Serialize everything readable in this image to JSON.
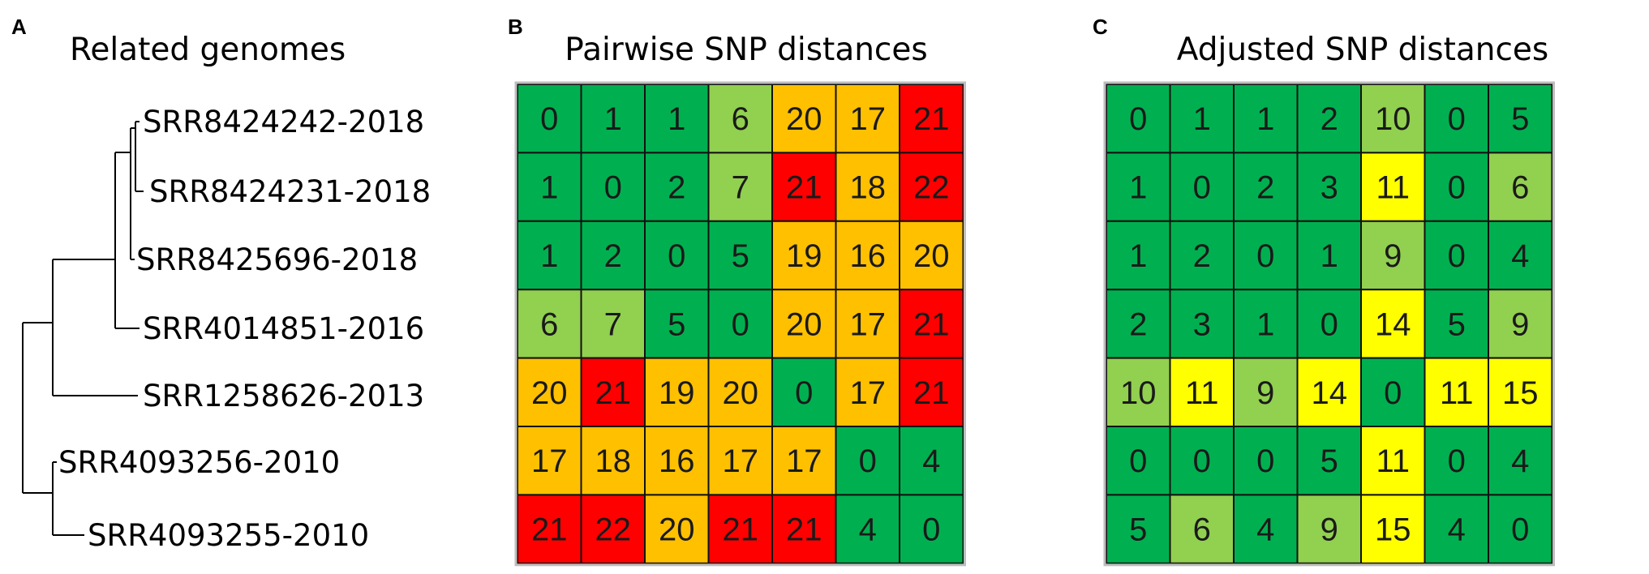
{
  "colors": {
    "dark_green": "#00b050",
    "light_green": "#92d050",
    "yellow": "#ffff00",
    "orange": "#ffc000",
    "red": "#ff0000"
  },
  "panel_a": {
    "letter": "A",
    "title": "Related genomes",
    "leaves": [
      "SRR8424242-2018",
      "SRR8424231-2018",
      "SRR8425696-2018",
      "SRR4014851-2016",
      "SRR1258626-2013",
      "SRR4093256-2010",
      "SRR4093255-2010"
    ]
  },
  "panel_b": {
    "letter": "B",
    "title": "Pairwise SNP distances",
    "matrix": [
      [
        0,
        1,
        1,
        6,
        20,
        17,
        21
      ],
      [
        1,
        0,
        2,
        7,
        21,
        18,
        22
      ],
      [
        1,
        2,
        0,
        5,
        19,
        16,
        20
      ],
      [
        6,
        7,
        5,
        0,
        20,
        17,
        21
      ],
      [
        20,
        21,
        19,
        20,
        0,
        17,
        21
      ],
      [
        17,
        18,
        16,
        17,
        17,
        0,
        4
      ],
      [
        21,
        22,
        20,
        21,
        21,
        4,
        0
      ]
    ],
    "cell_colors": [
      [
        "dark_green",
        "dark_green",
        "dark_green",
        "light_green",
        "orange",
        "orange",
        "red"
      ],
      [
        "dark_green",
        "dark_green",
        "dark_green",
        "light_green",
        "red",
        "orange",
        "red"
      ],
      [
        "dark_green",
        "dark_green",
        "dark_green",
        "dark_green",
        "orange",
        "orange",
        "orange"
      ],
      [
        "light_green",
        "light_green",
        "dark_green",
        "dark_green",
        "orange",
        "orange",
        "red"
      ],
      [
        "orange",
        "red",
        "orange",
        "orange",
        "dark_green",
        "orange",
        "red"
      ],
      [
        "orange",
        "orange",
        "orange",
        "orange",
        "orange",
        "dark_green",
        "dark_green"
      ],
      [
        "red",
        "red",
        "orange",
        "red",
        "red",
        "dark_green",
        "dark_green"
      ]
    ]
  },
  "panel_c": {
    "letter": "C",
    "title": "Adjusted SNP distances",
    "matrix": [
      [
        0,
        1,
        1,
        2,
        10,
        0,
        5
      ],
      [
        1,
        0,
        2,
        3,
        11,
        0,
        6
      ],
      [
        1,
        2,
        0,
        1,
        9,
        0,
        4
      ],
      [
        2,
        3,
        1,
        0,
        14,
        5,
        9
      ],
      [
        10,
        11,
        9,
        14,
        0,
        11,
        15
      ],
      [
        0,
        0,
        0,
        5,
        11,
        0,
        4
      ],
      [
        5,
        6,
        4,
        9,
        15,
        4,
        0
      ]
    ],
    "cell_colors": [
      [
        "dark_green",
        "dark_green",
        "dark_green",
        "dark_green",
        "light_green",
        "dark_green",
        "dark_green"
      ],
      [
        "dark_green",
        "dark_green",
        "dark_green",
        "dark_green",
        "yellow",
        "dark_green",
        "light_green"
      ],
      [
        "dark_green",
        "dark_green",
        "dark_green",
        "dark_green",
        "light_green",
        "dark_green",
        "dark_green"
      ],
      [
        "dark_green",
        "dark_green",
        "dark_green",
        "dark_green",
        "yellow",
        "dark_green",
        "light_green"
      ],
      [
        "light_green",
        "yellow",
        "light_green",
        "yellow",
        "dark_green",
        "yellow",
        "yellow"
      ],
      [
        "dark_green",
        "dark_green",
        "dark_green",
        "dark_green",
        "yellow",
        "dark_green",
        "dark_green"
      ],
      [
        "dark_green",
        "light_green",
        "dark_green",
        "light_green",
        "yellow",
        "dark_green",
        "dark_green"
      ]
    ]
  }
}
